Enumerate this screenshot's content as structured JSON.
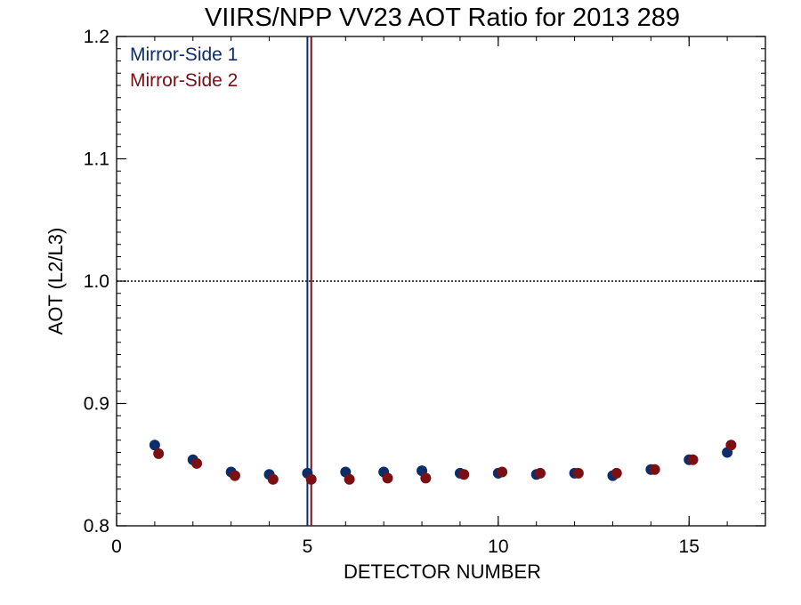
{
  "chart_data": {
    "type": "scatter",
    "title": "VIIRS/NPP VV23 AOT Ratio for 2013 289",
    "xlabel": "DETECTOR NUMBER",
    "ylabel": "AOT (L2/L3)",
    "xlim": [
      0,
      17
    ],
    "ylim": [
      0.8,
      1.2
    ],
    "x_ticks": [
      0,
      5,
      10,
      15
    ],
    "y_ticks": [
      0.8,
      0.9,
      1.0,
      1.1,
      1.2
    ],
    "x_tick_labels": [
      "0",
      "5",
      "10",
      "15"
    ],
    "y_tick_labels": [
      "0.8",
      "0.9",
      "1.0",
      "1.1",
      "1.2"
    ],
    "reference_line": {
      "y": 1.0,
      "style": "dotted"
    },
    "legend_position": "top-left",
    "series": [
      {
        "name": "Mirror-Side 1",
        "color": "#0b2d6b",
        "x": [
          1,
          2,
          3,
          4,
          5,
          6,
          7,
          8,
          9,
          10,
          11,
          12,
          13,
          14,
          15,
          16
        ],
        "y": [
          0.866,
          0.854,
          0.844,
          0.842,
          0.843,
          0.844,
          0.844,
          0.845,
          0.843,
          0.843,
          0.842,
          0.843,
          0.841,
          0.846,
          0.854,
          0.86
        ],
        "vertical_line_x": 5.0
      },
      {
        "name": "Mirror-Side 2",
        "color": "#7a0f14",
        "x": [
          1.1,
          2.1,
          3.1,
          4.1,
          5.1,
          6.1,
          7.1,
          8.1,
          9.1,
          10.1,
          11.1,
          12.1,
          13.1,
          14.1,
          15.1,
          16.1
        ],
        "y": [
          0.859,
          0.851,
          0.841,
          0.838,
          0.838,
          0.838,
          0.839,
          0.839,
          0.842,
          0.844,
          0.843,
          0.843,
          0.843,
          0.846,
          0.854,
          0.866
        ],
        "vertical_line_x": 5.1
      }
    ]
  }
}
